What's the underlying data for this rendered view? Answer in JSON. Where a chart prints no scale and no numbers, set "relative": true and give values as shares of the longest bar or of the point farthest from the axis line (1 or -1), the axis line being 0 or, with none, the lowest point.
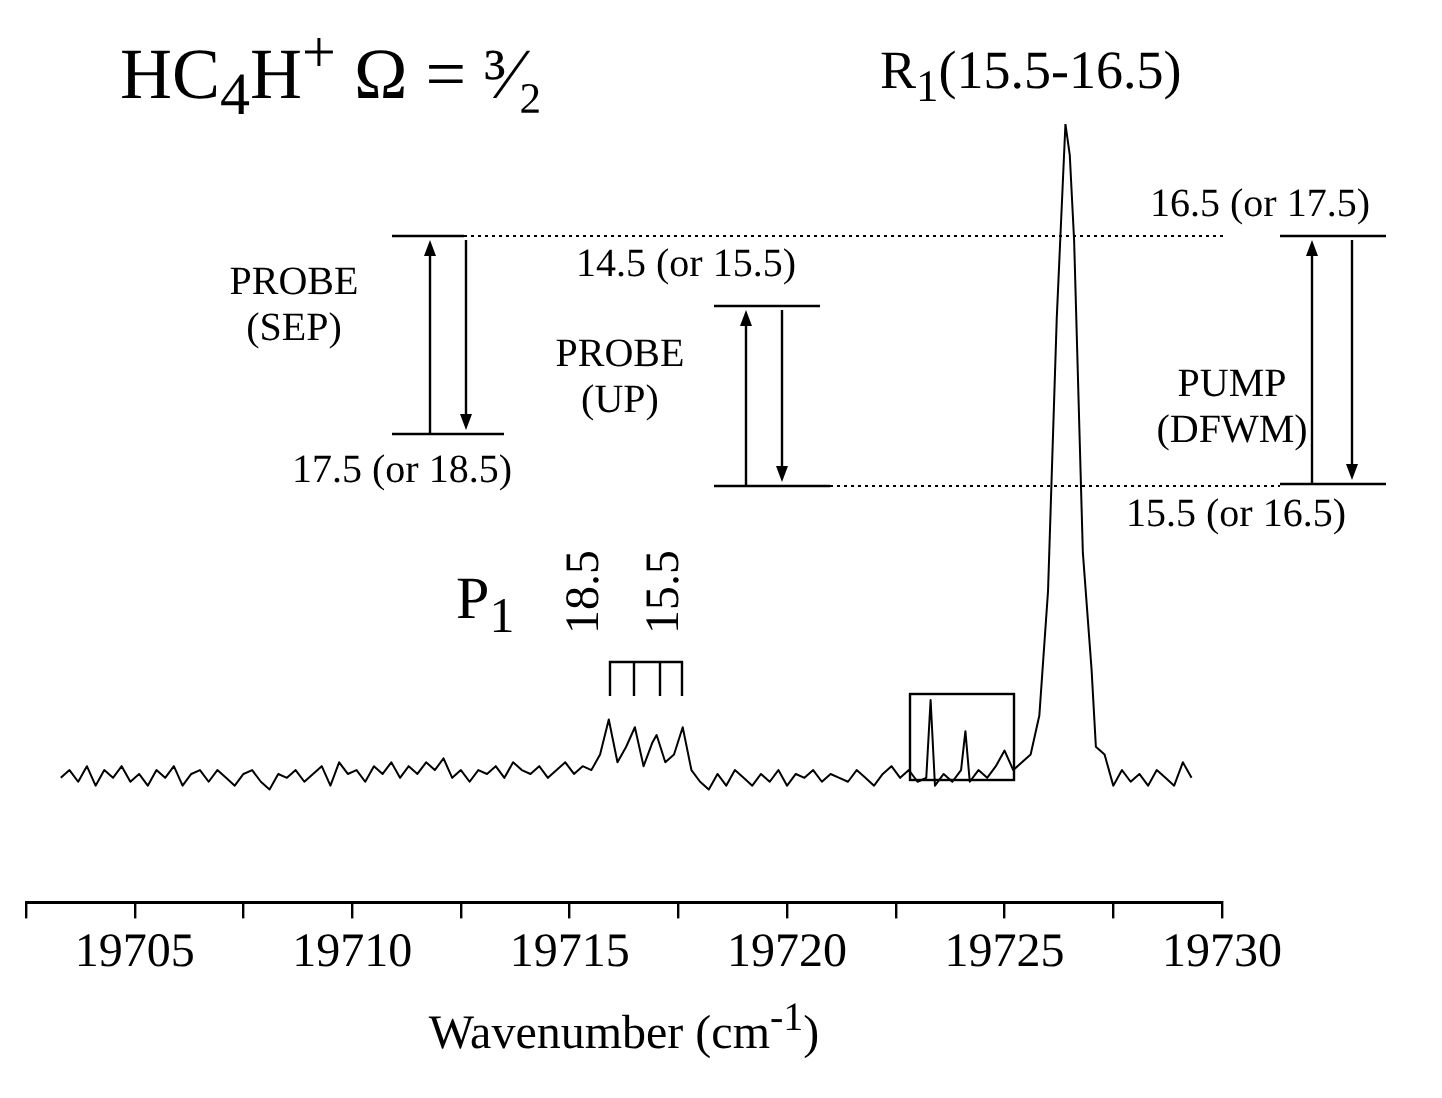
{
  "chart_data": {
    "type": "line",
    "title": "HC$_{4}$H$^{+}$   Ω = ³⁄₂",
    "xlabel": "Wavenumber (cm$^{-1}$)",
    "relative": true,
    "marker": "none",
    "line_style": "solid",
    "xlim": [
      19702.5,
      19730
    ],
    "xticks": [
      {
        "value": 19702.5,
        "label": null
      },
      19705,
      {
        "value": 19707.5,
        "label": null
      },
      19710,
      {
        "value": 19712.5,
        "label": null
      },
      19715,
      {
        "value": 19717.5,
        "label": null
      },
      19720,
      {
        "value": 19722.5,
        "label": null
      },
      19725,
      {
        "value": 19727.5,
        "label": null
      },
      19730
    ],
    "annotations": [
      "R$_{1}$(15.5-16.5)",
      "PROBE (SEP)",
      "17.5 (or 18.5)",
      "PROBE (UP)",
      "14.5 (or 15.5)",
      "PUMP (DFWM)",
      "16.5 (or 17.5)",
      "15.5 (or 16.5)",
      "P$_{1}$",
      "18.5",
      "15.5"
    ],
    "series": [
      {
        "color": "#000000",
        "x": [
          19703.3,
          19703.5,
          19703.7,
          19703.9,
          19704.1,
          19704.3,
          19704.5,
          19704.7,
          19704.9,
          19705.1,
          19705.3,
          19705.5,
          19705.7,
          19705.9,
          19706.1,
          19706.3,
          19706.5,
          19706.7,
          19706.9,
          19707.1,
          19707.3,
          19707.5,
          19707.7,
          19707.9,
          19708.1,
          19708.3,
          19708.5,
          19708.7,
          19708.9,
          19709.1,
          19709.3,
          19709.5,
          19709.7,
          19709.9,
          19710.1,
          19710.3,
          19710.5,
          19710.7,
          19710.9,
          19711.1,
          19711.3,
          19711.5,
          19711.7,
          19711.9,
          19712.1,
          19712.3,
          19712.5,
          19712.7,
          19712.9,
          19713.1,
          19713.3,
          19713.5,
          19713.7,
          19713.9,
          19714.1,
          19714.3,
          19714.5,
          19714.7,
          19714.9,
          19715.1,
          19715.3,
          19715.5,
          19715.7,
          19715.9,
          19716.1,
          19716.3,
          19716.5,
          19716.7,
          19716.9,
          19717.0,
          19717.2,
          19717.4,
          19717.6,
          19717.8,
          19718.0,
          19718.2,
          19718.4,
          19718.6,
          19718.8,
          19719.0,
          19719.2,
          19719.4,
          19719.6,
          19719.8,
          19720.0,
          19720.2,
          19720.4,
          19720.6,
          19720.8,
          19721.0,
          19721.2,
          19721.4,
          19721.6,
          19721.8,
          19722.0,
          19722.2,
          19722.4,
          19722.6,
          19722.8,
          19723.0,
          19723.2,
          19723.3,
          19723.4,
          19723.6,
          19723.8,
          19724.0,
          19724.1,
          19724.2,
          19724.4,
          19724.6,
          19724.8,
          19725.0,
          19725.2,
          19725.4,
          19725.6,
          19725.8,
          19726.0,
          19726.2,
          19726.4,
          19726.5,
          19726.6,
          19726.8,
          19727.0,
          19727.1,
          19727.3,
          19727.5,
          19727.7,
          19727.9,
          19728.1,
          19728.3,
          19728.5,
          19728.7,
          19728.9,
          19729.1,
          19729.3
        ],
        "values": [
          0.16,
          0.17,
          0.155,
          0.175,
          0.15,
          0.17,
          0.16,
          0.175,
          0.155,
          0.165,
          0.15,
          0.17,
          0.16,
          0.175,
          0.15,
          0.165,
          0.17,
          0.155,
          0.17,
          0.16,
          0.15,
          0.165,
          0.17,
          0.155,
          0.145,
          0.165,
          0.16,
          0.17,
          0.155,
          0.165,
          0.175,
          0.15,
          0.18,
          0.165,
          0.17,
          0.155,
          0.175,
          0.165,
          0.18,
          0.16,
          0.175,
          0.165,
          0.18,
          0.17,
          0.185,
          0.16,
          0.17,
          0.155,
          0.17,
          0.165,
          0.175,
          0.16,
          0.18,
          0.17,
          0.165,
          0.175,
          0.16,
          0.17,
          0.18,
          0.165,
          0.175,
          0.17,
          0.19,
          0.235,
          0.18,
          0.2,
          0.225,
          0.175,
          0.205,
          0.215,
          0.18,
          0.19,
          0.225,
          0.17,
          0.155,
          0.145,
          0.165,
          0.15,
          0.17,
          0.16,
          0.15,
          0.165,
          0.155,
          0.17,
          0.15,
          0.165,
          0.16,
          0.17,
          0.155,
          0.165,
          0.16,
          0.155,
          0.17,
          0.16,
          0.15,
          0.165,
          0.175,
          0.16,
          0.17,
          0.155,
          0.16,
          0.26,
          0.15,
          0.165,
          0.155,
          0.17,
          0.22,
          0.155,
          0.17,
          0.16,
          0.175,
          0.195,
          0.17,
          0.18,
          0.19,
          0.24,
          0.4,
          0.75,
          1,
          0.96,
          0.85,
          0.45,
          0.3,
          0.2,
          0.19,
          0.15,
          0.17,
          0.155,
          0.165,
          0.15,
          0.17,
          0.16,
          0.15,
          0.18,
          0.16
        ]
      }
    ]
  }
}
